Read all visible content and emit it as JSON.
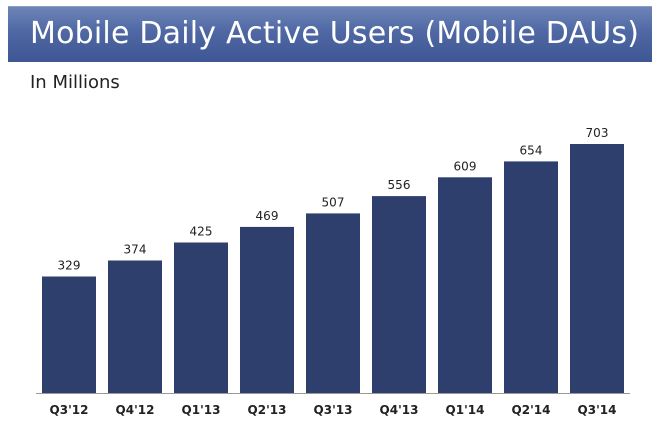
{
  "header": {
    "title": "Mobile Daily Active Users (Mobile DAUs)",
    "subtitle": "In Millions"
  },
  "colors": {
    "bar": "#2e3f6e",
    "title_bar": "#4f68a4",
    "axis": "#999999"
  },
  "chart_data": {
    "type": "bar",
    "title": "Mobile Daily Active Users (Mobile DAUs)",
    "subtitle": "In Millions",
    "categories": [
      "Q3'12",
      "Q4'12",
      "Q1'13",
      "Q2'13",
      "Q3'13",
      "Q4'13",
      "Q1'14",
      "Q2'14",
      "Q3'14"
    ],
    "values": [
      329,
      374,
      425,
      469,
      507,
      556,
      609,
      654,
      703
    ],
    "data_labels": [
      "329",
      "374",
      "425",
      "469",
      "507",
      "556",
      "609",
      "654",
      "703"
    ],
    "xlabel": "",
    "ylabel": "",
    "ylim": [
      0,
      703
    ],
    "grid": false,
    "legend": "none"
  }
}
